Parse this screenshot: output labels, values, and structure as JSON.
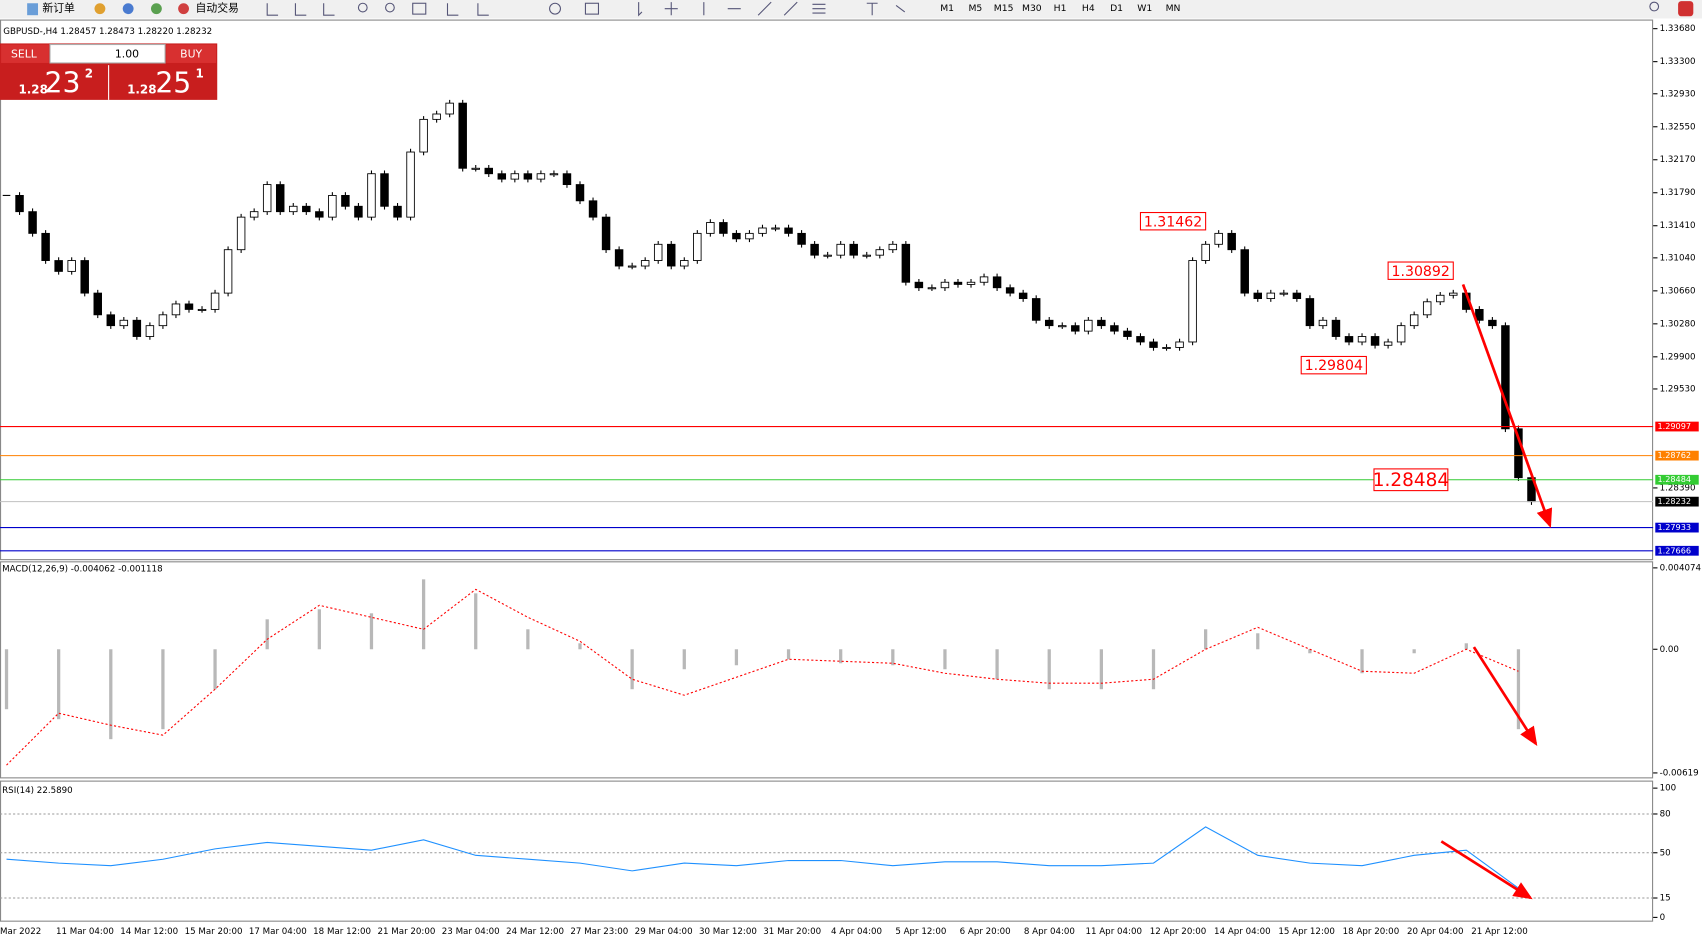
{
  "toolbar": {
    "new_order": "新订单",
    "auto_trading": "自动交易",
    "timeframes": [
      "M1",
      "M5",
      "M15",
      "M30",
      "H1",
      "H4",
      "D1",
      "W1",
      "MN"
    ]
  },
  "trade_panel": {
    "sell": "SELL",
    "lot": "1.00",
    "buy": "BUY",
    "sell_prefix": "1.28",
    "sell_big": "23",
    "sell_sup": "2",
    "buy_prefix": "1.28",
    "buy_big": "25",
    "buy_sup": "1"
  },
  "chart": {
    "info": "GBPUSD-,H4  1.28457 1.28473 1.28220 1.28232",
    "ylim": [
      1.2757,
      1.33785
    ],
    "yticks": [
      {
        "value": 1.3368,
        "label": "1.33680"
      },
      {
        "value": 1.333,
        "label": "1.33300"
      },
      {
        "value": 1.3293,
        "label": "1.32930"
      },
      {
        "value": 1.3255,
        "label": "1.32550"
      },
      {
        "value": 1.3217,
        "label": "1.32170"
      },
      {
        "value": 1.3179,
        "label": "1.31790"
      },
      {
        "value": 1.3141,
        "label": "1.31410"
      },
      {
        "value": 1.3104,
        "label": "1.31040"
      },
      {
        "value": 1.3066,
        "label": "1.30660"
      },
      {
        "value": 1.3028,
        "label": "1.30280"
      },
      {
        "value": 1.299,
        "label": "1.29900"
      },
      {
        "value": 1.2953,
        "label": "1.29530"
      },
      {
        "value": 1.2839,
        "label": "1.28390"
      }
    ],
    "closes": [
      1.31759,
      1.31572,
      1.31322,
      1.31009,
      1.30884,
      1.31009,
      1.30634,
      1.30384,
      1.30259,
      1.30321,
      1.30134,
      1.30259,
      1.30384,
      1.30509,
      1.30446,
      1.30446,
      1.30634,
      1.31134,
      1.31509,
      1.31572,
      1.31884,
      1.31572,
      1.31634,
      1.31572,
      1.31509,
      1.31759,
      1.31634,
      1.31509,
      1.32009,
      1.31634,
      1.31509,
      1.32259,
      1.32635,
      1.32697,
      1.32822,
      1.32072,
      1.32072,
      1.32009,
      1.31947,
      1.32009,
      1.31947,
      1.32009,
      1.32009,
      1.31884,
      1.31697,
      1.31509,
      1.31134,
      1.30946,
      1.30946,
      1.31009,
      1.31196,
      1.30946,
      1.31009,
      1.31322,
      1.31447,
      1.31322,
      1.31259,
      1.31322,
      1.31384,
      1.31384,
      1.31322,
      1.31196,
      1.31071,
      1.31071,
      1.31196,
      1.31071,
      1.31071,
      1.31134,
      1.31196,
      1.30759,
      1.30696,
      1.30696,
      1.30759,
      1.30734,
      1.30759,
      1.30821,
      1.30696,
      1.30634,
      1.30571,
      1.30321,
      1.30259,
      1.30259,
      1.30196,
      1.30321,
      1.30259,
      1.30196,
      1.30134,
      1.30071,
      1.30008,
      1.30008,
      1.30071,
      1.31009,
      1.31196,
      1.31322,
      1.31134,
      1.30634,
      1.30571,
      1.30634,
      1.30634,
      1.30571,
      1.30259,
      1.30321,
      1.30134,
      1.30071,
      1.30134,
      1.30033,
      1.30071,
      1.30259,
      1.30384,
      1.30534,
      1.30609,
      1.30634,
      1.30446,
      1.30321,
      1.30259,
      1.29071,
      1.28508,
      1.28232
    ],
    "price_lines": [
      {
        "value": 1.29097,
        "color": "#ff0000"
      },
      {
        "value": 1.28762,
        "color": "#ff8000"
      },
      {
        "value": 1.28484,
        "color": "#33cc33"
      },
      {
        "value": 1.28232,
        "color": "#c0c0c0"
      },
      {
        "value": 1.27933,
        "color": "#0000cc"
      },
      {
        "value": 1.27666,
        "color": "#0000cc"
      }
    ],
    "annotations": [
      1.31462,
      1.30892,
      1.29804,
      1.28484
    ],
    "time_labels": [
      "Mar 2022",
      "11 Mar 04:00",
      "14 Mar 12:00",
      "15 Mar 20:00",
      "17 Mar 04:00",
      "18 Mar 12:00",
      "21 Mar 20:00",
      "23 Mar 04:00",
      "24 Mar 12:00",
      "27 Mar 23:00",
      "29 Mar 04:00",
      "30 Mar 12:00",
      "31 Mar 20:00",
      "4 Apr 04:00",
      "5 Apr 12:00",
      "6 Apr 20:00",
      "8 Apr 04:00",
      "11 Apr 04:00",
      "12 Apr 20:00",
      "14 Apr 04:00",
      "15 Apr 12:00",
      "18 Apr 20:00",
      "20 Apr 04:00",
      "21 Apr 12:00"
    ]
  },
  "macd": {
    "title": "MACD(12,26,9) -0.004062 -0.001118",
    "ylim": [
      -0.00641,
      0.00435
    ],
    "yticks": [
      0.004074,
      {
        "value": 0,
        "label": "0.00"
      },
      -0.00619
    ],
    "histogram": [
      -0.003,
      -0.0035,
      -0.0045,
      -0.004,
      -0.002,
      0.0015,
      0.002,
      0.0018,
      0.0035,
      0.0028,
      0.001,
      0.0003,
      -0.002,
      -0.001,
      -0.0008,
      -0.0005,
      -0.0007,
      -0.0008,
      -0.001,
      -0.0015,
      -0.002,
      -0.002,
      -0.002,
      0.001,
      0.0008,
      -0.0002,
      -0.0012,
      -0.0002,
      0.0003,
      -0.004
    ],
    "signal": [
      -0.0058,
      -0.0032,
      -0.0038,
      -0.0043,
      -0.002,
      0.0005,
      0.0022,
      0.0016,
      0.001,
      0.003,
      0.0016,
      0.0004,
      -0.0015,
      -0.0023,
      -0.0014,
      -0.0005,
      -0.0006,
      -0.0007,
      -0.0012,
      -0.0015,
      -0.0017,
      -0.0017,
      -0.0015,
      0,
      0.0011,
      0,
      -0.0011,
      -0.0012,
      0,
      -0.0011
    ]
  },
  "rsi": {
    "title": "RSI(14) 22.5890",
    "ylim": [
      -2.5,
      105
    ],
    "yticks": [
      100,
      80,
      50,
      15,
      0
    ],
    "levels": [
      80,
      50,
      15
    ],
    "values": [
      45,
      42,
      40,
      45,
      53,
      58,
      55,
      52,
      60,
      48,
      45,
      42,
      36,
      42,
      40,
      44,
      44,
      40,
      43,
      43,
      40,
      40,
      42,
      70,
      48,
      42,
      40,
      48,
      52,
      22.589
    ]
  }
}
